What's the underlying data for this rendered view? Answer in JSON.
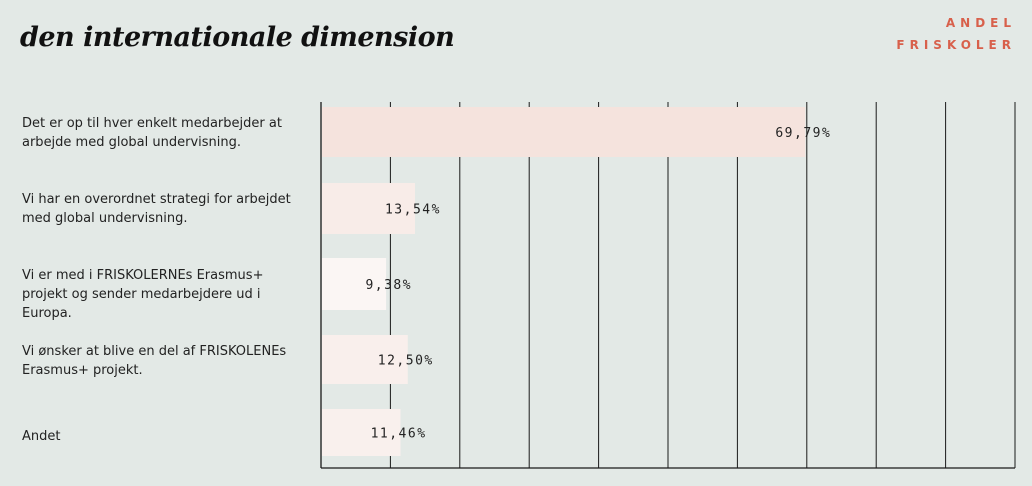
{
  "title": "den internationale dimension",
  "legend": {
    "line1": "ANDEL",
    "line2": "FRISKOLER",
    "color": "#d8604b"
  },
  "chart_data": {
    "type": "bar",
    "orientation": "horizontal",
    "categories": [
      "Det er op til hver enkelt medarbejder at arbejde med global undervisning.",
      "Vi har en overordnet strategi for arbejdet med global undervisning.",
      "Vi er med i FRISKOLERNEs Erasmus+ projekt og sender medarbejdere ud i Europa.",
      "Vi ønsker at blive en del af FRISKOLENEs Erasmus+ projekt.",
      "Andet"
    ],
    "series": [
      {
        "name": "ANDEL FRISKOLER",
        "values": [
          69.79,
          13.54,
          9.38,
          12.5,
          11.46
        ]
      }
    ],
    "data_labels": [
      "69,79%",
      "13,54%",
      "9,38%",
      "12,50%",
      "11,46%"
    ],
    "xlim": [
      0,
      100
    ],
    "grid": true,
    "bar_colors": [
      "#f5e3dd",
      "#f8ece8",
      "#fbf6f4",
      "#f9efec",
      "#f9f0ed"
    ]
  }
}
